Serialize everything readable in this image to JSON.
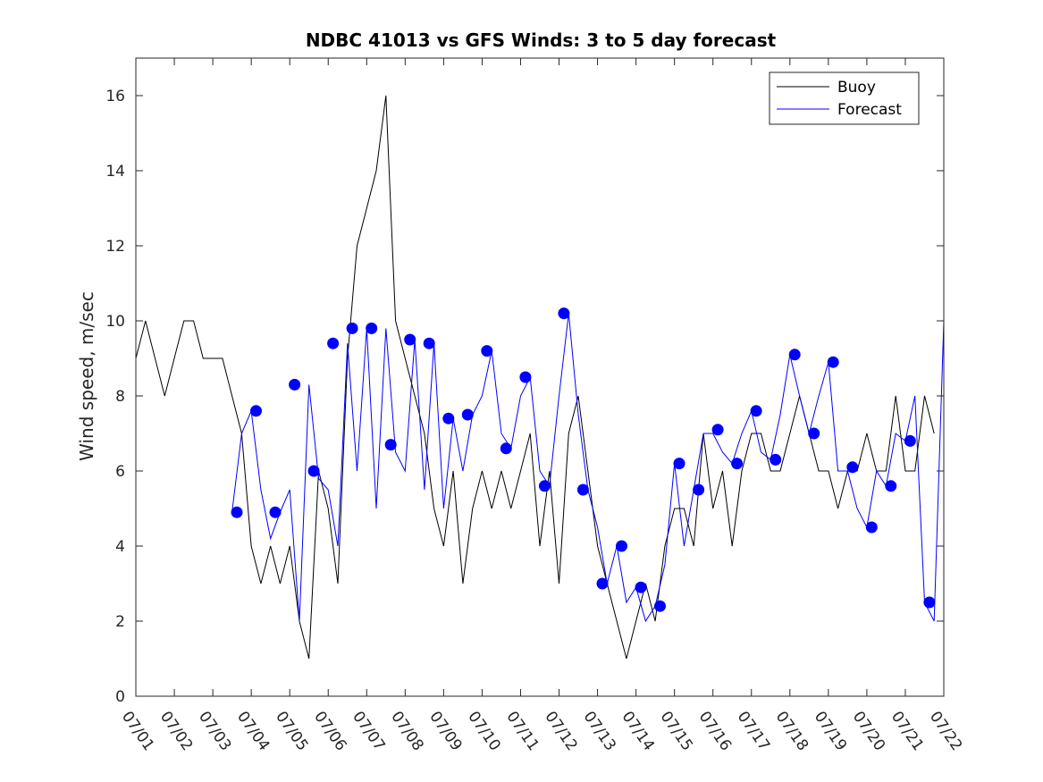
{
  "chart_data": {
    "type": "line",
    "title": "NDBC 41013 vs GFS Winds: 3 to 5 day forecast",
    "xlabel": "",
    "ylabel": "Wind speed, m/sec",
    "xlim": [
      "07/01",
      "07/22"
    ],
    "ylim": [
      0,
      17
    ],
    "x_ticks": [
      "07/01",
      "07/02",
      "07/03",
      "07/04",
      "07/05",
      "07/06",
      "07/07",
      "07/08",
      "07/09",
      "07/10",
      "07/11",
      "07/12",
      "07/13",
      "07/14",
      "07/15",
      "07/16",
      "07/17",
      "07/18",
      "07/19",
      "07/20",
      "07/21",
      "07/22"
    ],
    "y_ticks": [
      0,
      2,
      4,
      6,
      8,
      10,
      12,
      14,
      16
    ],
    "legend": {
      "position": "top-right",
      "entries": [
        "Buoy",
        "Forecast"
      ]
    },
    "colors": {
      "buoy": "#000000",
      "forecast": "#0000ff",
      "markers": "#0000ff"
    },
    "series": [
      {
        "name": "Buoy",
        "style": "line",
        "x": [
          "07/01 00:00",
          "07/01 06:00",
          "07/01 12:00",
          "07/01 18:00",
          "07/02 00:00",
          "07/02 06:00",
          "07/02 12:00",
          "07/02 18:00",
          "07/03 00:00",
          "07/03 06:00",
          "07/03 12:00",
          "07/03 18:00",
          "07/04 00:00",
          "07/04 06:00",
          "07/04 12:00",
          "07/04 18:00",
          "07/05 00:00",
          "07/05 06:00",
          "07/05 12:00",
          "07/05 18:00",
          "07/06 00:00",
          "07/06 06:00",
          "07/06 12:00",
          "07/06 18:00",
          "07/07 00:00",
          "07/07 06:00",
          "07/07 12:00",
          "07/07 18:00",
          "07/08 00:00",
          "07/08 06:00",
          "07/08 12:00",
          "07/08 18:00",
          "07/09 00:00",
          "07/09 06:00",
          "07/09 12:00",
          "07/09 18:00",
          "07/10 00:00",
          "07/10 06:00",
          "07/10 12:00",
          "07/10 18:00",
          "07/11 00:00",
          "07/11 06:00",
          "07/11 12:00",
          "07/11 18:00",
          "07/12 00:00",
          "07/12 06:00",
          "07/12 12:00",
          "07/12 18:00",
          "07/13 00:00",
          "07/13 06:00",
          "07/13 12:00",
          "07/13 18:00",
          "07/14 00:00",
          "07/14 06:00",
          "07/14 12:00",
          "07/14 18:00",
          "07/15 00:00",
          "07/15 06:00",
          "07/15 12:00",
          "07/15 18:00",
          "07/16 00:00",
          "07/16 06:00",
          "07/16 12:00",
          "07/16 18:00",
          "07/17 00:00",
          "07/17 06:00",
          "07/17 12:00",
          "07/17 18:00",
          "07/18 00:00",
          "07/18 06:00",
          "07/18 12:00",
          "07/18 18:00",
          "07/19 00:00",
          "07/19 06:00",
          "07/19 12:00",
          "07/19 18:00",
          "07/20 00:00",
          "07/20 06:00",
          "07/20 12:00",
          "07/20 18:00",
          "07/21 00:00",
          "07/21 06:00",
          "07/21 12:00",
          "07/21 18:00"
        ],
        "values": [
          9,
          10,
          9,
          8,
          9,
          10,
          10,
          9,
          9,
          9,
          8,
          7,
          4,
          3,
          4,
          3,
          4,
          2,
          1,
          6,
          5,
          3,
          9,
          12,
          13,
          14,
          16,
          10,
          9,
          8,
          7,
          5,
          4,
          6,
          3,
          5,
          6,
          5,
          6,
          5,
          6,
          7,
          4,
          6,
          3,
          7,
          8,
          6,
          4,
          3,
          2,
          1,
          2,
          3,
          2,
          4,
          5,
          5,
          4,
          7,
          5,
          6,
          4,
          6,
          7,
          7,
          6,
          6,
          7,
          8,
          7,
          6,
          6,
          5,
          6,
          6,
          7,
          6,
          6,
          8,
          6,
          6,
          8,
          7
        ]
      },
      {
        "name": "Forecast",
        "style": "line",
        "x": [
          "07/03 12:00",
          "07/03 18:00",
          "07/04 00:00",
          "07/04 06:00",
          "07/04 12:00",
          "07/04 18:00",
          "07/05 00:00",
          "07/05 06:00",
          "07/05 12:00",
          "07/05 18:00",
          "07/06 00:00",
          "07/06 06:00",
          "07/06 12:00",
          "07/06 18:00",
          "07/07 00:00",
          "07/07 06:00",
          "07/07 12:00",
          "07/07 18:00",
          "07/08 00:00",
          "07/08 06:00",
          "07/08 12:00",
          "07/08 18:00",
          "07/09 00:00",
          "07/09 06:00",
          "07/09 12:00",
          "07/09 18:00",
          "07/10 00:00",
          "07/10 06:00",
          "07/10 12:00",
          "07/10 18:00",
          "07/11 00:00",
          "07/11 06:00",
          "07/11 12:00",
          "07/11 18:00",
          "07/12 00:00",
          "07/12 06:00",
          "07/12 12:00",
          "07/12 18:00",
          "07/13 00:00",
          "07/13 06:00",
          "07/13 12:00",
          "07/13 18:00",
          "07/14 00:00",
          "07/14 06:00",
          "07/14 12:00",
          "07/14 18:00",
          "07/15 00:00",
          "07/15 06:00",
          "07/15 12:00",
          "07/15 18:00",
          "07/16 00:00",
          "07/16 06:00",
          "07/16 12:00",
          "07/16 18:00",
          "07/17 00:00",
          "07/17 06:00",
          "07/17 12:00",
          "07/17 18:00",
          "07/18 00:00",
          "07/18 06:00",
          "07/18 12:00",
          "07/18 18:00",
          "07/19 00:00",
          "07/19 06:00",
          "07/19 12:00",
          "07/19 18:00",
          "07/20 00:00",
          "07/20 06:00",
          "07/20 12:00",
          "07/20 18:00",
          "07/21 00:00",
          "07/21 06:00",
          "07/21 12:00",
          "07/21 18:00",
          "07/22 00:00"
        ],
        "values": [
          4.9,
          7.0,
          7.6,
          5.5,
          4.2,
          4.9,
          5.5,
          2.0,
          8.3,
          5.8,
          5.5,
          4.0,
          9.4,
          6.0,
          9.8,
          5.0,
          9.8,
          6.5,
          6.0,
          9.5,
          5.5,
          9.4,
          5.0,
          7.4,
          6.0,
          7.5,
          8.0,
          9.2,
          7.0,
          6.6,
          8.0,
          8.5,
          6.0,
          5.6,
          8.0,
          10.2,
          7.5,
          5.5,
          4.5,
          3.0,
          4.0,
          2.5,
          2.9,
          2.0,
          2.4,
          3.5,
          6.2,
          4.0,
          5.5,
          7.0,
          7.0,
          6.5,
          6.2,
          7.0,
          7.6,
          6.5,
          6.3,
          7.5,
          9.1,
          8.0,
          7.0,
          8.0,
          8.9,
          6.0,
          6.0,
          5.0,
          4.5,
          6.0,
          5.6,
          7.0,
          6.8,
          8.0,
          2.5,
          2.0,
          10.0
        ]
      },
      {
        "name": "",
        "style": "markers",
        "x": [
          "07/03 15:00",
          "07/04 03:00",
          "07/04 15:00",
          "07/05 03:00",
          "07/05 15:00",
          "07/06 03:00",
          "07/06 15:00",
          "07/07 03:00",
          "07/07 15:00",
          "07/08 03:00",
          "07/08 15:00",
          "07/09 03:00",
          "07/09 15:00",
          "07/10 03:00",
          "07/10 15:00",
          "07/11 03:00",
          "07/11 15:00",
          "07/12 03:00",
          "07/12 15:00",
          "07/13 03:00",
          "07/13 15:00",
          "07/14 03:00",
          "07/14 15:00",
          "07/15 03:00",
          "07/15 15:00",
          "07/16 03:00",
          "07/16 15:00",
          "07/17 03:00",
          "07/17 15:00",
          "07/18 03:00",
          "07/18 15:00",
          "07/19 03:00",
          "07/19 15:00",
          "07/20 03:00",
          "07/20 15:00",
          "07/21 03:00",
          "07/21 15:00"
        ],
        "values": [
          4.9,
          7.6,
          4.9,
          8.3,
          6.0,
          9.4,
          9.8,
          9.8,
          6.7,
          9.5,
          9.4,
          7.4,
          7.5,
          9.2,
          6.6,
          8.5,
          5.6,
          10.2,
          5.5,
          3.0,
          4.0,
          2.9,
          2.4,
          6.2,
          5.5,
          7.1,
          6.2,
          7.6,
          6.3,
          9.1,
          7.0,
          8.9,
          6.1,
          4.5,
          5.6,
          6.8,
          2.5
        ]
      }
    ]
  }
}
